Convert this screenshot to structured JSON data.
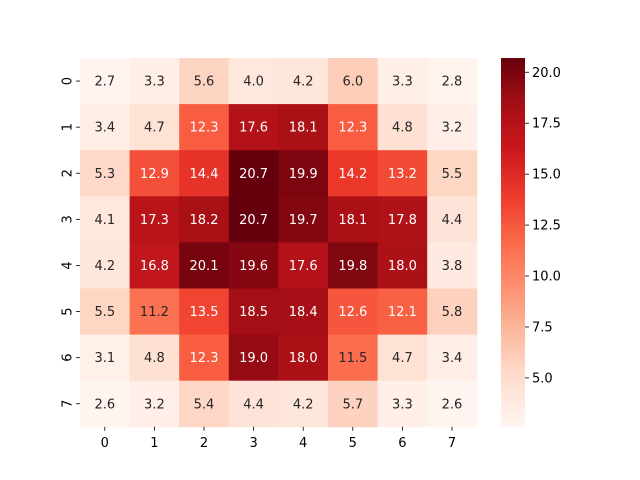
{
  "chart_data": {
    "type": "heatmap",
    "title": "",
    "xlabel": "",
    "ylabel": "",
    "x_categories": [
      "0",
      "1",
      "2",
      "3",
      "4",
      "5",
      "6",
      "7"
    ],
    "y_categories": [
      "0",
      "1",
      "2",
      "3",
      "4",
      "5",
      "6",
      "7"
    ],
    "values": [
      [
        2.7,
        3.3,
        5.6,
        4.0,
        4.2,
        6.0,
        3.3,
        2.8
      ],
      [
        3.4,
        4.7,
        12.3,
        17.6,
        18.1,
        12.3,
        4.8,
        3.2
      ],
      [
        5.3,
        12.9,
        14.4,
        20.7,
        19.9,
        14.2,
        13.2,
        5.5
      ],
      [
        4.1,
        17.3,
        18.2,
        20.7,
        19.7,
        18.1,
        17.8,
        4.4
      ],
      [
        4.2,
        16.8,
        20.1,
        19.6,
        17.6,
        19.8,
        18.0,
        3.8
      ],
      [
        5.5,
        11.2,
        13.5,
        18.5,
        18.4,
        12.6,
        12.1,
        5.8
      ],
      [
        3.1,
        4.8,
        12.3,
        19.0,
        18.0,
        11.5,
        4.7,
        3.4
      ],
      [
        2.6,
        3.2,
        5.4,
        4.4,
        4.2,
        5.7,
        3.3,
        2.6
      ]
    ],
    "annotated": true,
    "value_format": "1 decimal",
    "colormap": "Reds",
    "colorbar": {
      "min": 2.6,
      "max": 20.7,
      "ticks": [
        5.0,
        7.5,
        10.0,
        12.5,
        15.0,
        17.5,
        20.0
      ],
      "tick_labels": [
        "5.0",
        "7.5",
        "10.0",
        "12.5",
        "15.0",
        "17.5",
        "20.0"
      ],
      "placement": "right"
    },
    "grid": false
  }
}
